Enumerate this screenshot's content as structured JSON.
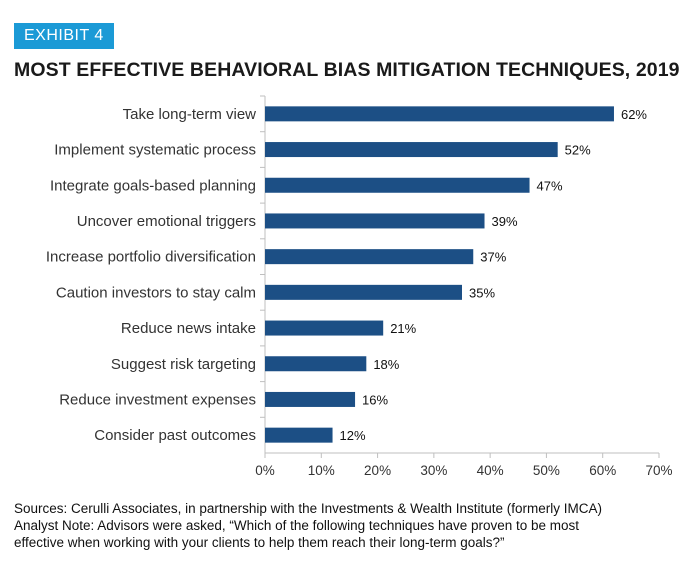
{
  "exhibit": "EXHIBIT 4",
  "title": "MOST EFFECTIVE BEHAVIORAL BIAS MITIGATION TECHNIQUES, 2019",
  "chart_data": {
    "type": "bar",
    "orientation": "horizontal",
    "title": "MOST EFFECTIVE BEHAVIORAL BIAS MITIGATION TECHNIQUES, 2019",
    "categories": [
      "Take long-term view",
      "Implement systematic process",
      "Integrate goals-based planning",
      "Uncover emotional triggers",
      "Increase portfolio diversification",
      "Caution investors to stay calm",
      "Reduce news intake",
      "Suggest risk targeting",
      "Reduce investment expenses",
      "Consider past outcomes"
    ],
    "values": [
      62,
      52,
      47,
      39,
      37,
      35,
      21,
      18,
      16,
      12
    ],
    "value_labels": [
      "62%",
      "52%",
      "47%",
      "39%",
      "37%",
      "35%",
      "21%",
      "18%",
      "16%",
      "12%"
    ],
    "xlim": [
      0,
      70
    ],
    "ticks": [
      0,
      10,
      20,
      30,
      40,
      50,
      60,
      70
    ],
    "tick_labels": [
      "0%",
      "10%",
      "20%",
      "30%",
      "40%",
      "50%",
      "60%",
      "70%"
    ],
    "xlabel": "",
    "ylabel": "",
    "bar_color": "#1c4f85",
    "grid": false
  },
  "notes": {
    "sources": "Sources: Cerulli Associates, in partnership with the Investments & Wealth Institute (formerly IMCA)",
    "analyst_note_line1": "Analyst Note: Advisors were asked, “Which of the following techniques have proven to be most",
    "analyst_note_line2": "effective when working with your clients to help them reach their long-term goals?”"
  },
  "colors": {
    "badge": "#1b9ad6",
    "bar": "#1c4f85",
    "axis": "#bfbfbf"
  }
}
